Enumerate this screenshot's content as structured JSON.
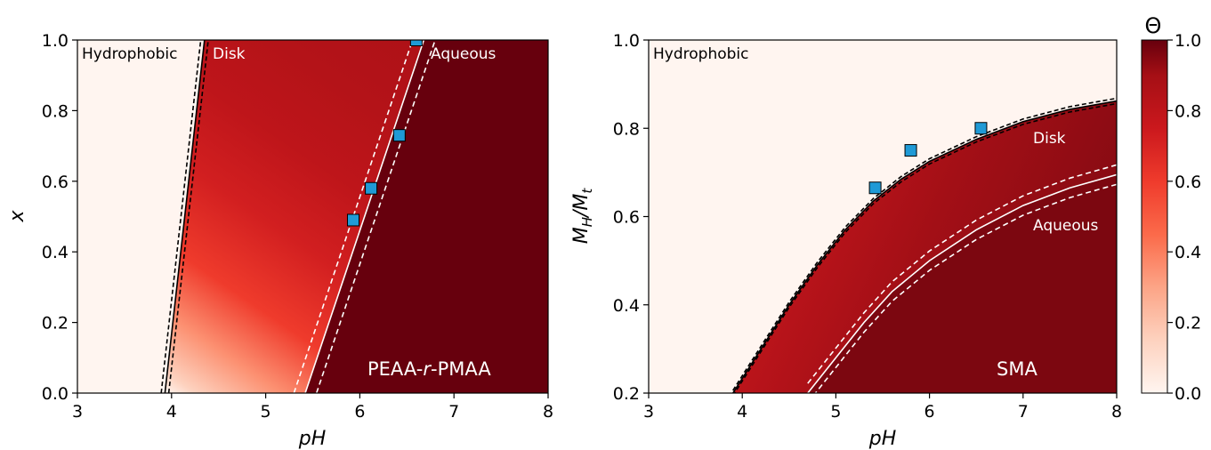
{
  "colors": {
    "low": "#fff5f0",
    "mid": "#ef3b2c",
    "high": "#67000d",
    "marker": "#1f9ad6"
  },
  "colorbar": {
    "label": "Θ",
    "ticks": [
      "0.0",
      "0.2",
      "0.4",
      "0.6",
      "0.8",
      "1.0"
    ]
  },
  "chart_data": [
    {
      "type": "heatmap",
      "xlabel_base": "pH",
      "ylabel": "x",
      "xlim": [
        3,
        8
      ],
      "ylim": [
        0,
        1
      ],
      "xticks": [
        "3",
        "4",
        "5",
        "6",
        "7",
        "8"
      ],
      "yticks": [
        "0.0",
        "0.2",
        "0.4",
        "0.6",
        "0.8",
        "1.0"
      ],
      "regions": {
        "hydrophobic": "Hydrophobic",
        "disk": "Disk",
        "aqueous": "Aqueous"
      },
      "sample_prefix": "PEAA-",
      "sample_italic": "r",
      "sample_suffix": "-PMAA",
      "boundary_disk": {
        "x": [
          3.93,
          4.35
        ],
        "y": [
          0.0,
          1.0
        ]
      },
      "boundary_aqueous": {
        "x": [
          5.42,
          6.68
        ],
        "y": [
          0.0,
          1.0
        ]
      },
      "aqueous_band_offset": 0.12,
      "gradient_stops": [
        {
          "x": 3.97,
          "theta": 0.02
        },
        {
          "x": 4.05,
          "theta": 0.15
        },
        {
          "x": 4.3,
          "theta": 0.35
        },
        {
          "x": 4.6,
          "theta": 0.6
        },
        {
          "x": 5.0,
          "theta": 0.72
        },
        {
          "x": 5.4,
          "theta": 0.8
        },
        {
          "x": 5.8,
          "theta": 0.84
        },
        {
          "x": 6.2,
          "theta": 0.86
        }
      ],
      "points": [
        {
          "x": 5.93,
          "y": 0.49
        },
        {
          "x": 6.12,
          "y": 0.58
        },
        {
          "x": 6.42,
          "y": 0.73
        },
        {
          "x": 6.6,
          "y": 1.0
        }
      ]
    },
    {
      "type": "heatmap",
      "xlabel_base": "pH",
      "ylabel_base": "M",
      "ylabel_sub1": "H",
      "ylabel_mid": "/M",
      "ylabel_sub2": "t",
      "xlim": [
        3,
        8
      ],
      "ylim": [
        0.2,
        1.0
      ],
      "xticks": [
        "3",
        "4",
        "5",
        "6",
        "7",
        "8"
      ],
      "yticks": [
        "0.2",
        "0.4",
        "0.6",
        "0.8",
        "1.0"
      ],
      "regions": {
        "hydrophobic": "Hydrophobic",
        "disk": "Disk",
        "aqueous": "Aqueous"
      },
      "sample_label": "SMA",
      "boundary_disk": {
        "x": [
          3.9,
          4.2,
          4.5,
          4.8,
          5.1,
          5.4,
          5.7,
          6.0,
          6.5,
          7.0,
          7.5,
          8.0
        ],
        "y": [
          0.2,
          0.3,
          0.4,
          0.49,
          0.57,
          0.635,
          0.685,
          0.725,
          0.775,
          0.815,
          0.843,
          0.862
        ]
      },
      "boundary_aqueous": {
        "x": [
          4.7,
          5.0,
          5.3,
          5.6,
          6.0,
          6.5,
          7.0,
          7.5,
          8.0
        ],
        "y": [
          0.2,
          0.28,
          0.36,
          0.43,
          0.5,
          0.57,
          0.625,
          0.665,
          0.695
        ]
      },
      "aqueous_band_offset": 0.022,
      "points": [
        {
          "x": 5.42,
          "y": 0.665
        },
        {
          "x": 5.8,
          "y": 0.75
        },
        {
          "x": 6.55,
          "y": 0.8
        }
      ]
    }
  ]
}
